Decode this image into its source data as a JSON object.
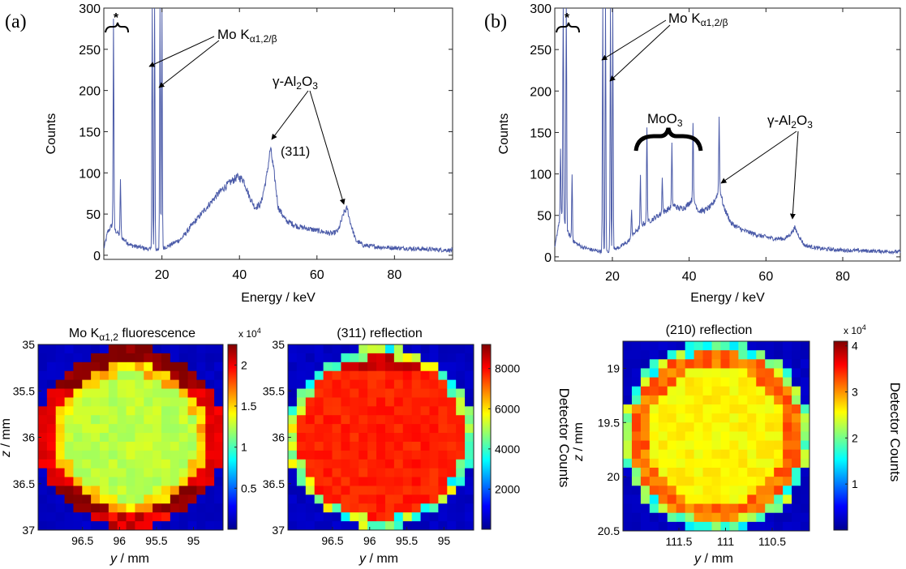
{
  "figure": {
    "panel_a_label": "(a)",
    "panel_b_label": "(b)"
  },
  "chart_data": [
    {
      "id": "spectrum_a",
      "type": "line",
      "xlabel": "Energy / keV",
      "ylabel": "Counts",
      "xlim": [
        5,
        95
      ],
      "ylim": [
        -5,
        300
      ],
      "xticks": [
        20,
        40,
        60,
        80
      ],
      "yticks": [
        0,
        50,
        100,
        150,
        200,
        250,
        300
      ],
      "ytick_labels": [
        "0",
        "50",
        "100",
        "150",
        "200",
        "250",
        "300"
      ],
      "series": [
        {
          "name": "spectrum",
          "color": "#4a5aa8",
          "noise": 8,
          "baseline": [
            [
              5,
              8
            ],
            [
              6,
              28
            ],
            [
              7,
              36
            ],
            [
              8,
              30
            ],
            [
              10,
              20
            ],
            [
              12,
              12
            ],
            [
              15,
              9
            ],
            [
              18,
              6
            ],
            [
              20,
              8
            ],
            [
              22,
              12
            ],
            [
              25,
              20
            ],
            [
              28,
              38
            ],
            [
              31,
              55
            ],
            [
              34,
              72
            ],
            [
              36,
              82
            ],
            [
              38,
              90
            ],
            [
              39.5,
              95
            ],
            [
              41,
              92
            ],
            [
              42.5,
              72
            ],
            [
              44,
              58
            ],
            [
              45.5,
              62
            ],
            [
              47,
              95
            ],
            [
              48,
              130
            ],
            [
              49,
              98
            ],
            [
              50,
              58
            ],
            [
              52,
              42
            ],
            [
              55,
              35
            ],
            [
              58,
              32
            ],
            [
              61,
              29
            ],
            [
              64,
              26
            ],
            [
              65.5,
              30
            ],
            [
              67,
              52
            ],
            [
              67.8,
              57
            ],
            [
              68.5,
              42
            ],
            [
              70,
              18
            ],
            [
              72,
              12
            ],
            [
              76,
              10
            ],
            [
              80,
              9
            ],
            [
              85,
              8
            ],
            [
              90,
              7
            ],
            [
              95,
              6
            ]
          ],
          "peaks": [
            [
              7.5,
              255
            ],
            [
              9.3,
              70
            ],
            [
              17.5,
              300
            ],
            [
              18.1,
              300
            ],
            [
              19.5,
              300
            ],
            [
              20.0,
              300
            ]
          ]
        }
      ],
      "annotations": {
        "star": "*",
        "mo_label": "Mo K",
        "mo_sub": "α1,2/β",
        "al_label_main": "γ-Al",
        "al_sub1": "2",
        "al_mid": "O",
        "al_sub2": "3",
        "reflection": "(311)"
      }
    },
    {
      "id": "spectrum_b",
      "type": "line",
      "xlabel": "Energy / keV",
      "ylabel": "Counts",
      "xlim": [
        5,
        95
      ],
      "ylim": [
        -5,
        300
      ],
      "xticks": [
        20,
        40,
        60,
        80
      ],
      "yticks": [
        0,
        50,
        100,
        150,
        200,
        250,
        300
      ],
      "ytick_labels": [
        "0",
        "50",
        "100",
        "150",
        "200",
        "250",
        "300"
      ],
      "series": [
        {
          "name": "spectrum",
          "color": "#4a5aa8",
          "noise": 7,
          "baseline": [
            [
              5,
              10
            ],
            [
              6,
              40
            ],
            [
              7,
              50
            ],
            [
              8,
              32
            ],
            [
              10,
              18
            ],
            [
              12,
              12
            ],
            [
              15,
              8
            ],
            [
              18,
              6
            ],
            [
              20,
              8
            ],
            [
              22,
              12
            ],
            [
              24,
              18
            ],
            [
              26,
              30
            ],
            [
              28,
              40
            ],
            [
              30,
              44
            ],
            [
              32,
              50
            ],
            [
              34,
              56
            ],
            [
              36,
              62
            ],
            [
              37.5,
              58
            ],
            [
              39,
              60
            ],
            [
              41,
              70
            ],
            [
              42.5,
              55
            ],
            [
              44,
              56
            ],
            [
              46,
              62
            ],
            [
              47,
              72
            ],
            [
              48,
              82
            ],
            [
              49,
              60
            ],
            [
              51,
              40
            ],
            [
              54,
              32
            ],
            [
              58,
              26
            ],
            [
              62,
              22
            ],
            [
              65,
              22
            ],
            [
              66.5,
              28
            ],
            [
              67.5,
              35
            ],
            [
              68.5,
              26
            ],
            [
              70,
              14
            ],
            [
              74,
              10
            ],
            [
              80,
              8
            ],
            [
              88,
              7
            ],
            [
              95,
              6
            ]
          ],
          "peaks": [
            [
              6.5,
              85
            ],
            [
              7.2,
              290
            ],
            [
              8.0,
              300
            ],
            [
              9.5,
              78
            ],
            [
              17.5,
              300
            ],
            [
              18.2,
              300
            ],
            [
              19.5,
              300
            ],
            [
              20.1,
              300
            ],
            [
              25,
              35
            ],
            [
              27.3,
              60
            ],
            [
              29.0,
              115
            ],
            [
              33.0,
              45
            ],
            [
              35.5,
              75
            ],
            [
              41.0,
              95
            ],
            [
              47.8,
              88
            ]
          ]
        }
      ],
      "annotations": {
        "star": "*",
        "mo_label": "Mo K",
        "mo_sub": "α1,2/β",
        "moo3_main": "MoO",
        "moo3_sub": "3",
        "al_label_main": "γ-Al",
        "al_sub1": "2",
        "al_mid": "O",
        "al_sub2": "3"
      }
    },
    {
      "id": "map_fluorescence",
      "type": "heatmap",
      "title_main": "Mo K",
      "title_sub": "α1,2",
      "title_rest": " fluorescence",
      "xlabel_var": "y",
      "xlabel_unit": " / mm",
      "ylabel_var": "z",
      "ylabel_unit": " / mm",
      "xlim": [
        97.1,
        94.6
      ],
      "ylim": [
        35.0,
        37.0
      ],
      "xticks": [
        96.5,
        96,
        95.5,
        95
      ],
      "xtick_labels": [
        "96.5",
        "96",
        "95.5",
        "95"
      ],
      "yticks": [
        35,
        35.5,
        36,
        36.5,
        37
      ],
      "ytick_labels": [
        "35",
        "35.5",
        "36",
        "36.5",
        "37"
      ],
      "grid_size": 21,
      "pattern": "ring",
      "colorbar": {
        "min": 0.0,
        "max": 2.25,
        "ticks": [
          0.5,
          1,
          1.5,
          2
        ],
        "tick_labels": [
          "0.5",
          "1",
          "1.5",
          "2"
        ],
        "exponent_prefix": "x 10",
        "exponent_power": "4"
      }
    },
    {
      "id": "map_311",
      "type": "heatmap",
      "title_main": "(311) reflection",
      "xlabel_var": "y",
      "xlabel_unit": " / mm",
      "xlim": [
        97.1,
        94.6
      ],
      "ylim": [
        35.0,
        37.0
      ],
      "xticks": [
        96.5,
        96,
        95.5,
        95
      ],
      "xtick_labels": [
        "96.5",
        "96",
        "95.5",
        "95"
      ],
      "yticks": [
        35,
        35.5,
        36,
        36.5,
        37
      ],
      "ytick_labels": [
        "35",
        "35.5",
        "36",
        "36.5",
        "37"
      ],
      "grid_size": 21,
      "pattern": "disk",
      "colorbar": {
        "min": 0,
        "max": 9200,
        "ticks": [
          2000,
          4000,
          6000,
          8000
        ],
        "tick_labels": [
          "2000",
          "4000",
          "6000",
          "8000"
        ],
        "label": "Detector Counts"
      }
    },
    {
      "id": "map_210",
      "type": "heatmap",
      "title_main": "(210) reflection",
      "xlabel_var": "y",
      "xlabel_unit": " / mm",
      "ylabel_var": "z",
      "ylabel_unit": " / mm",
      "xlim": [
        112.1,
        110.1
      ],
      "ylim": [
        18.75,
        20.5
      ],
      "xticks": [
        111.5,
        111,
        110.5
      ],
      "xtick_labels": [
        "111.5",
        "111",
        "110.5"
      ],
      "yticks": [
        19,
        19.5,
        20,
        20.5
      ],
      "ytick_labels": [
        "19",
        "19.5",
        "20",
        "20.5"
      ],
      "grid_size": 21,
      "pattern": "disk210",
      "colorbar": {
        "min": 0,
        "max": 4.1,
        "ticks": [
          1,
          2,
          3,
          4
        ],
        "tick_labels": [
          "1",
          "2",
          "3",
          "4"
        ],
        "exponent_prefix": "x 10",
        "exponent_power": "4",
        "label": "Detector Counts"
      }
    }
  ]
}
